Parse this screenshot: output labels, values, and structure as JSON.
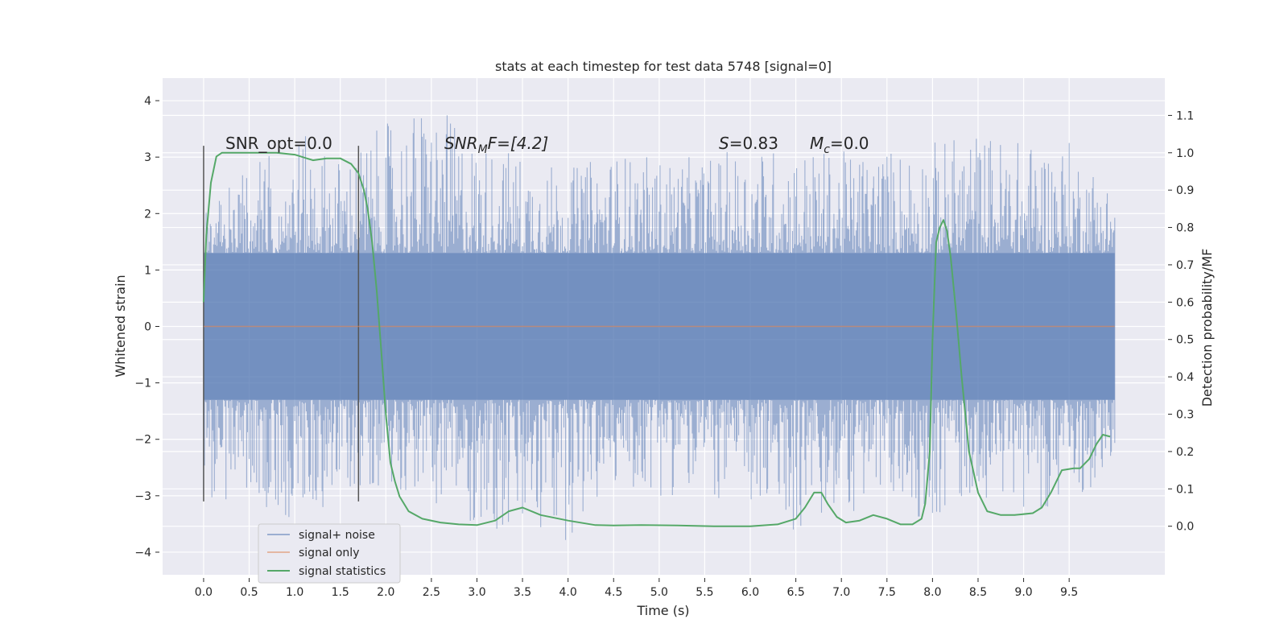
{
  "chart_data": {
    "type": "line",
    "title": "stats at each timestep for test data 5748 [signal=0]",
    "xlabel": "Time (s)",
    "ylabel": "Whitened strain",
    "y2label": "Detection probability/MF",
    "xlim": [
      -0.45,
      10.55
    ],
    "ylim": [
      -4.4,
      4.4
    ],
    "y2lim": [
      -0.13,
      1.2
    ],
    "x_ticks": [
      0.0,
      0.5,
      1.0,
      1.5,
      2.0,
      2.5,
      3.0,
      3.5,
      4.0,
      4.5,
      5.0,
      5.5,
      6.0,
      6.5,
      7.0,
      7.5,
      8.0,
      8.5,
      9.0,
      9.5
    ],
    "x_tick_labels": [
      "0.0",
      "0.5",
      "1.0",
      "1.5",
      "2.0",
      "2.5",
      "3.0",
      "3.5",
      "4.0",
      "4.5",
      "5.0",
      "5.5",
      "6.0",
      "6.5",
      "7.0",
      "7.5",
      "8.0",
      "8.5",
      "9.0",
      "9.5"
    ],
    "y_ticks": [
      -4,
      -3,
      -2,
      -1,
      0,
      1,
      2,
      3,
      4
    ],
    "y_tick_labels": [
      "−4",
      "−3",
      "−2",
      "−1",
      "0",
      "1",
      "2",
      "3",
      "4"
    ],
    "y2_ticks": [
      0.0,
      0.1,
      0.2,
      0.3,
      0.4,
      0.5,
      0.6,
      0.7,
      0.8,
      0.9,
      1.0,
      1.1
    ],
    "y2_tick_labels": [
      "0.0",
      "0.1",
      "0.2",
      "0.3",
      "0.4",
      "0.5",
      "0.6",
      "0.7",
      "0.8",
      "0.9",
      "1.0",
      "1.1"
    ],
    "grid": true,
    "legend_position": "bottom-left",
    "annotations": {
      "snr_opt": "SNR_opt=0.0",
      "snr_mf_main": "SNR",
      "snr_mf_sub": "M",
      "snr_mf_tail": "F=[4.2]",
      "s_main": "S",
      "s_tail": "=0.83",
      "mc_main": "M",
      "mc_sub": "c",
      "mc_tail": "=0.0"
    },
    "vertical_markers": [
      0.0,
      1.7
    ],
    "vertical_marker_range": [
      -3.1,
      3.2
    ],
    "series": [
      {
        "name": "signal+ noise",
        "color": "#4c72b0",
        "x_range": [
          0.0,
          10.0
        ],
        "envelope": {
          "x": [
            0.0,
            0.5,
            1.0,
            1.5,
            2.0,
            2.5,
            3.0,
            3.5,
            4.0,
            4.5,
            5.0,
            5.5,
            6.0,
            6.5,
            7.0,
            7.5,
            8.0,
            8.5,
            9.0,
            9.5,
            10.0
          ],
          "upper": [
            2.4,
            2.8,
            3.5,
            3.0,
            3.6,
            4.0,
            3.3,
            3.1,
            2.8,
            3.1,
            3.0,
            3.0,
            3.2,
            3.2,
            3.1,
            3.2,
            3.3,
            3.5,
            3.3,
            3.3,
            2.5
          ],
          "lower": [
            -3.0,
            -3.2,
            -3.6,
            -3.0,
            -2.8,
            -3.1,
            -3.6,
            -3.9,
            -3.8,
            -2.9,
            -3.0,
            -3.0,
            -3.3,
            -3.7,
            -3.4,
            -3.1,
            -3.5,
            -3.0,
            -3.2,
            -3.3,
            -2.4
          ]
        }
      },
      {
        "name": "signal only",
        "color": "#dd8452",
        "x": [
          0.0,
          10.0
        ],
        "y": [
          0.0,
          0.0
        ]
      },
      {
        "name": "signal statistics",
        "color": "#55a868",
        "axis": "right",
        "x": [
          0.0,
          0.03,
          0.08,
          0.14,
          0.2,
          0.3,
          0.5,
          0.8,
          1.0,
          1.2,
          1.35,
          1.5,
          1.62,
          1.7,
          1.76,
          1.8,
          1.85,
          1.9,
          1.95,
          2.0,
          2.05,
          2.1,
          2.15,
          2.25,
          2.4,
          2.6,
          2.8,
          3.0,
          3.2,
          3.35,
          3.5,
          3.7,
          4.0,
          4.3,
          4.5,
          4.8,
          5.2,
          5.6,
          6.0,
          6.3,
          6.5,
          6.6,
          6.7,
          6.78,
          6.85,
          6.95,
          7.05,
          7.2,
          7.35,
          7.5,
          7.65,
          7.78,
          7.88,
          7.92,
          7.97,
          8.0,
          8.04,
          8.08,
          8.12,
          8.16,
          8.2,
          8.26,
          8.32,
          8.4,
          8.5,
          8.6,
          8.75,
          8.9,
          9.1,
          9.2,
          9.3,
          9.42,
          9.55,
          9.62,
          9.72,
          9.8,
          9.87,
          9.95
        ],
        "y": [
          0.6,
          0.78,
          0.92,
          0.99,
          1.0,
          1.0,
          1.0,
          1.0,
          0.995,
          0.98,
          0.985,
          0.985,
          0.97,
          0.945,
          0.9,
          0.85,
          0.76,
          0.63,
          0.47,
          0.3,
          0.17,
          0.12,
          0.08,
          0.04,
          0.02,
          0.01,
          0.005,
          0.003,
          0.015,
          0.04,
          0.05,
          0.03,
          0.015,
          0.003,
          0.002,
          0.003,
          0.002,
          0.0,
          0.0,
          0.005,
          0.02,
          0.05,
          0.09,
          0.09,
          0.06,
          0.025,
          0.01,
          0.015,
          0.03,
          0.02,
          0.005,
          0.005,
          0.02,
          0.06,
          0.2,
          0.5,
          0.76,
          0.8,
          0.82,
          0.79,
          0.72,
          0.57,
          0.4,
          0.2,
          0.09,
          0.04,
          0.03,
          0.03,
          0.035,
          0.05,
          0.09,
          0.15,
          0.155,
          0.155,
          0.18,
          0.22,
          0.245,
          0.24
        ]
      }
    ]
  }
}
